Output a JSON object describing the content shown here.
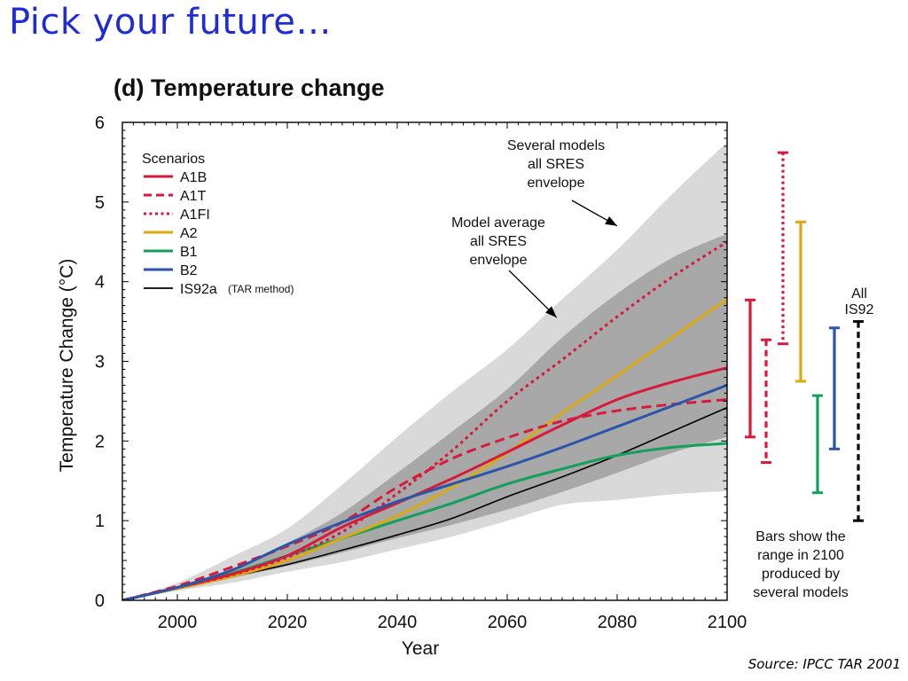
{
  "slide": {
    "title": "Pick your future…",
    "source": "Source: IPCC TAR 2001"
  },
  "chart_data": {
    "type": "line",
    "title": "(d) Temperature change",
    "xlabel": "Year",
    "ylabel": "Temperature Change (°C)",
    "xlim": [
      1990,
      2100
    ],
    "ylim": [
      0,
      6
    ],
    "xticks": [
      2000,
      2020,
      2040,
      2060,
      2080,
      2100
    ],
    "yticks": [
      0,
      1,
      2,
      3,
      4,
      5,
      6
    ],
    "legend": {
      "title": "Scenarios",
      "placement": "top-left",
      "extra_note": "(TAR method)"
    },
    "series": [
      {
        "name": "A1B",
        "color": "#d71a3a",
        "dash": "solid",
        "x": [
          1990,
          2000,
          2010,
          2020,
          2030,
          2040,
          2050,
          2060,
          2070,
          2080,
          2090,
          2100
        ],
        "y": [
          0.0,
          0.16,
          0.33,
          0.56,
          0.92,
          1.22,
          1.53,
          1.86,
          2.2,
          2.52,
          2.74,
          2.92
        ]
      },
      {
        "name": "A1T",
        "color": "#d71a3a",
        "dash": "dashed",
        "x": [
          1990,
          2000,
          2010,
          2020,
          2030,
          2040,
          2050,
          2060,
          2070,
          2080,
          2090,
          2100
        ],
        "y": [
          0.0,
          0.18,
          0.42,
          0.68,
          0.98,
          1.42,
          1.78,
          2.04,
          2.25,
          2.38,
          2.46,
          2.52
        ]
      },
      {
        "name": "A1FI",
        "color": "#d71a3a",
        "dash": "dotted",
        "x": [
          1990,
          2000,
          2010,
          2020,
          2030,
          2040,
          2050,
          2060,
          2070,
          2080,
          2090,
          2100
        ],
        "y": [
          0.0,
          0.16,
          0.32,
          0.54,
          0.86,
          1.34,
          1.88,
          2.5,
          3.02,
          3.56,
          4.06,
          4.5
        ]
      },
      {
        "name": "A2",
        "color": "#dcaa10",
        "dash": "solid",
        "x": [
          1990,
          2000,
          2010,
          2020,
          2030,
          2040,
          2050,
          2060,
          2070,
          2080,
          2090,
          2100
        ],
        "y": [
          0.0,
          0.15,
          0.3,
          0.5,
          0.78,
          1.06,
          1.42,
          1.85,
          2.35,
          2.82,
          3.3,
          3.78
        ]
      },
      {
        "name": "B1",
        "color": "#14a05c",
        "dash": "solid",
        "x": [
          1990,
          2000,
          2010,
          2020,
          2030,
          2040,
          2050,
          2060,
          2070,
          2080,
          2090,
          2100
        ],
        "y": [
          0.0,
          0.16,
          0.34,
          0.56,
          0.78,
          1.0,
          1.22,
          1.46,
          1.65,
          1.82,
          1.92,
          1.97
        ]
      },
      {
        "name": "B2",
        "color": "#2a55a8",
        "dash": "solid",
        "x": [
          1990,
          2000,
          2010,
          2020,
          2030,
          2040,
          2050,
          2060,
          2070,
          2080,
          2090,
          2100
        ],
        "y": [
          0.0,
          0.16,
          0.38,
          0.7,
          0.98,
          1.24,
          1.46,
          1.68,
          1.92,
          2.18,
          2.44,
          2.7
        ]
      },
      {
        "name": "IS92a",
        "color": "#000000",
        "dash": "solid",
        "x": [
          1990,
          2000,
          2010,
          2020,
          2030,
          2040,
          2050,
          2060,
          2070,
          2080,
          2090,
          2100
        ],
        "y": [
          0.0,
          0.15,
          0.3,
          0.45,
          0.63,
          0.82,
          1.03,
          1.3,
          1.55,
          1.82,
          2.12,
          2.42
        ]
      }
    ],
    "envelopes": [
      {
        "label": "Several models all SRES envelope",
        "color": "#d9d9d9",
        "x": [
          1990,
          2000,
          2010,
          2020,
          2030,
          2040,
          2050,
          2060,
          2070,
          2080,
          2090,
          2100
        ],
        "upper": [
          0.0,
          0.22,
          0.55,
          0.9,
          1.45,
          2.05,
          2.62,
          3.15,
          3.78,
          4.4,
          5.1,
          5.75
        ],
        "lower": [
          0.0,
          0.12,
          0.22,
          0.36,
          0.48,
          0.64,
          0.8,
          1.0,
          1.2,
          1.26,
          1.33,
          1.37
        ]
      },
      {
        "label": "Model average all SRES envelope",
        "color": "#a8a8a8",
        "x": [
          1990,
          2000,
          2010,
          2020,
          2030,
          2040,
          2050,
          2060,
          2070,
          2080,
          2090,
          2100
        ],
        "upper": [
          0.0,
          0.18,
          0.4,
          0.72,
          1.1,
          1.6,
          2.12,
          2.65,
          3.3,
          3.85,
          4.3,
          4.6
        ],
        "lower": [
          0.0,
          0.13,
          0.28,
          0.43,
          0.6,
          0.78,
          0.95,
          1.14,
          1.36,
          1.6,
          1.85,
          2.05
        ]
      }
    ],
    "annotations": [
      {
        "text": "Several models\nall SRES\nenvelope",
        "arrow_to": {
          "x": 2080,
          "y": 4.7
        }
      },
      {
        "text": "Model average\nall SRES\nenvelope",
        "arrow_to": {
          "x": 2069,
          "y": 3.55
        }
      }
    ],
    "range_bars": {
      "note": "Bars show the range in 2100 produced by several models",
      "note_lines": [
        "Bars show the",
        "range in 2100",
        "produced by",
        "several models"
      ],
      "all_label": [
        "All",
        "IS92"
      ],
      "bars": [
        {
          "scenario": "A1B",
          "color": "#d71a3a",
          "dash": "solid",
          "min": 2.05,
          "max": 3.77
        },
        {
          "scenario": "A1T",
          "color": "#d71a3a",
          "dash": "dashed",
          "min": 1.73,
          "max": 3.27
        },
        {
          "scenario": "A1FI",
          "color": "#d71a3a",
          "dash": "dotted",
          "min": 3.22,
          "max": 5.62
        },
        {
          "scenario": "A2",
          "color": "#dcaa10",
          "dash": "solid",
          "min": 2.75,
          "max": 4.75
        },
        {
          "scenario": "B1",
          "color": "#14a05c",
          "dash": "solid",
          "min": 1.35,
          "max": 2.57
        },
        {
          "scenario": "B2",
          "color": "#2a55a8",
          "dash": "solid",
          "min": 1.9,
          "max": 3.42
        },
        {
          "scenario": "All IS92",
          "color": "#000000",
          "dash": "dashed",
          "min": 1.0,
          "max": 3.5
        }
      ]
    }
  }
}
